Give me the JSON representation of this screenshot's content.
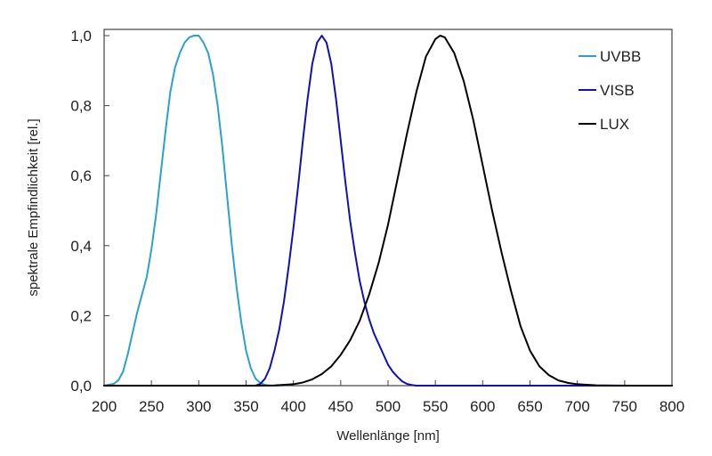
{
  "chart_data": {
    "type": "line",
    "title": "",
    "xlabel": "Wellenlänge [nm]",
    "ylabel": "spektrale Empfindlichkeit [rel.]",
    "xlim": [
      200,
      800
    ],
    "ylim": [
      0,
      1.0
    ],
    "x_ticks": [
      200,
      250,
      300,
      350,
      400,
      450,
      500,
      550,
      600,
      650,
      700,
      750,
      800
    ],
    "x_tick_labels": [
      "200",
      "250",
      "300",
      "350",
      "400",
      "450",
      "500",
      "550",
      "600",
      "650",
      "700",
      "750",
      "800"
    ],
    "y_ticks": [
      0,
      0.2,
      0.4,
      0.6,
      0.8,
      1.0
    ],
    "y_tick_labels": [
      "0,0",
      "0,2",
      "0,4",
      "0,6",
      "0,8",
      "1,0"
    ],
    "grid": false,
    "legend_position": "top-right",
    "series": [
      {
        "name": "UVBB",
        "color": "#2aa0d6",
        "x": [
          200,
          210,
          215,
          220,
          225,
          230,
          235,
          240,
          245,
          250,
          255,
          260,
          265,
          270,
          275,
          280,
          285,
          290,
          295,
          300,
          305,
          310,
          315,
          320,
          325,
          330,
          335,
          340,
          345,
          350,
          355,
          360,
          365,
          370,
          375,
          380,
          390
        ],
        "y": [
          0.0,
          0.005,
          0.015,
          0.04,
          0.09,
          0.15,
          0.21,
          0.26,
          0.31,
          0.39,
          0.49,
          0.61,
          0.73,
          0.84,
          0.91,
          0.95,
          0.98,
          0.995,
          1.0,
          1.0,
          0.98,
          0.95,
          0.89,
          0.8,
          0.68,
          0.54,
          0.4,
          0.28,
          0.18,
          0.1,
          0.05,
          0.02,
          0.008,
          0.002,
          0.0,
          0.0,
          0.0
        ]
      },
      {
        "name": "VISB",
        "color": "#1010b8",
        "x": [
          200,
          360,
          365,
          370,
          375,
          380,
          385,
          390,
          395,
          400,
          405,
          410,
          415,
          420,
          425,
          430,
          435,
          440,
          445,
          450,
          455,
          460,
          465,
          470,
          475,
          480,
          485,
          490,
          495,
          500,
          505,
          510,
          515,
          520,
          525,
          530,
          540,
          800
        ],
        "y": [
          0.0,
          0.0,
          0.005,
          0.02,
          0.05,
          0.1,
          0.16,
          0.24,
          0.34,
          0.45,
          0.57,
          0.7,
          0.82,
          0.92,
          0.98,
          1.0,
          0.98,
          0.92,
          0.82,
          0.7,
          0.58,
          0.47,
          0.38,
          0.3,
          0.24,
          0.19,
          0.15,
          0.12,
          0.09,
          0.06,
          0.04,
          0.025,
          0.012,
          0.005,
          0.002,
          0.0,
          0.0,
          0.0
        ]
      },
      {
        "name": "LUX",
        "color": "#000000",
        "x": [
          200,
          360,
          380,
          400,
          410,
          420,
          430,
          440,
          450,
          460,
          470,
          480,
          490,
          500,
          510,
          520,
          530,
          540,
          550,
          555,
          560,
          570,
          580,
          590,
          600,
          610,
          620,
          630,
          640,
          650,
          660,
          670,
          680,
          690,
          700,
          720,
          740,
          760,
          780,
          800
        ],
        "y": [
          0.0,
          0.0,
          0.0005,
          0.004,
          0.009,
          0.018,
          0.033,
          0.055,
          0.088,
          0.13,
          0.185,
          0.26,
          0.35,
          0.46,
          0.59,
          0.72,
          0.84,
          0.94,
          0.99,
          1.0,
          0.995,
          0.95,
          0.87,
          0.76,
          0.63,
          0.5,
          0.38,
          0.27,
          0.17,
          0.1,
          0.055,
          0.03,
          0.015,
          0.008,
          0.004,
          0.001,
          0.0003,
          0.0001,
          0.0,
          0.0
        ]
      }
    ]
  }
}
